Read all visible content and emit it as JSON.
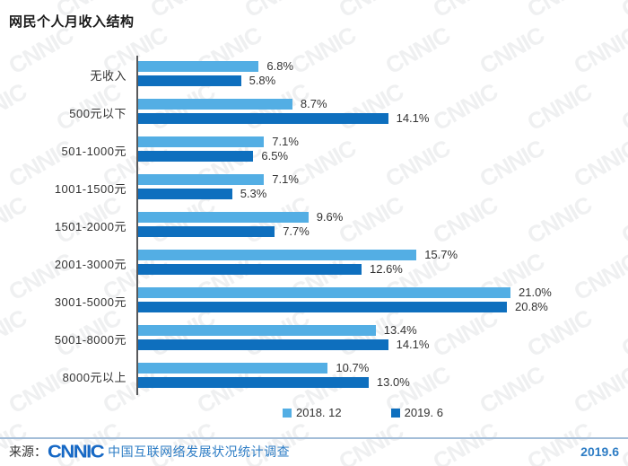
{
  "title": "网民个人月收入结构",
  "chart_data": {
    "type": "bar",
    "orientation": "horizontal",
    "unit": "%",
    "title": "网民个人月收入结构",
    "categories": [
      "无收入",
      "500元以下",
      "501-1000元",
      "1001-1500元",
      "1501-2000元",
      "2001-3000元",
      "3001-5000元",
      "5001-8000元",
      "8000元以上"
    ],
    "series": [
      {
        "name": "2018. 12",
        "color": "#53AEE4",
        "values": [
          6.8,
          8.7,
          7.1,
          7.1,
          9.6,
          15.7,
          21.0,
          13.4,
          10.7
        ]
      },
      {
        "name": "2019. 6",
        "color": "#0E6FBE",
        "values": [
          5.8,
          14.1,
          6.5,
          5.3,
          7.7,
          12.6,
          20.8,
          14.1,
          13.0
        ]
      }
    ],
    "value_label_format": "{value}%",
    "xlim": [
      0,
      21.5
    ],
    "grid": false,
    "legend_position": "bottom",
    "axis_color": "#58595b"
  },
  "footer": {
    "source_label": "来源：",
    "logo": "CNNIC",
    "logo_color": "#1668C5",
    "source_text": "中国互联网络发展状况统计调查",
    "text_color": "#2E7DC5",
    "divider_color": "#A3BDD8",
    "date": "2019.6"
  },
  "watermark": {
    "text": "CNNIC"
  }
}
